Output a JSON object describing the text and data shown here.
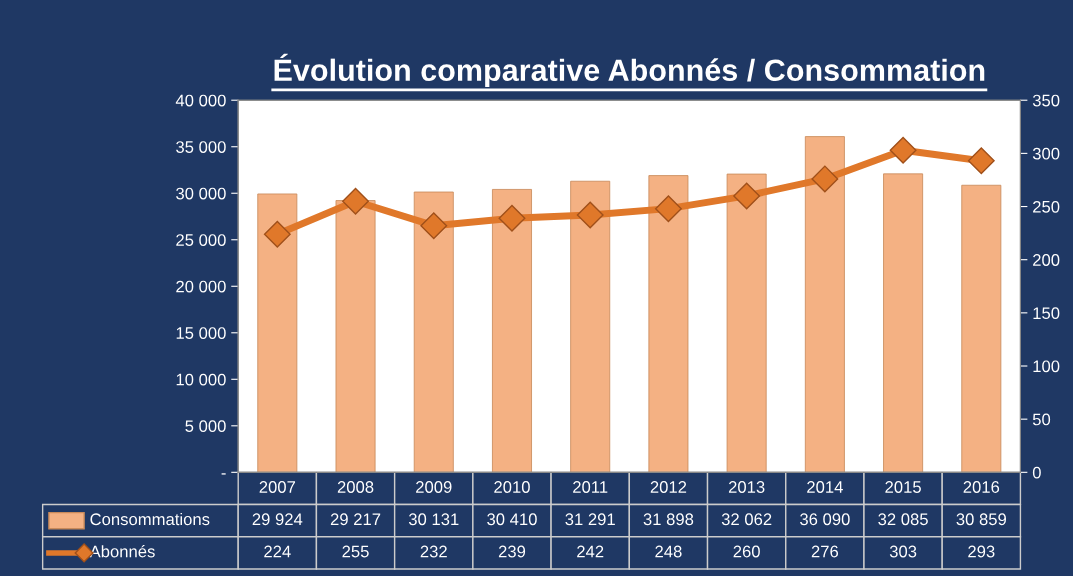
{
  "chart_data": {
    "type": "bar",
    "title": "Évolution comparative Abonnés / Consommation",
    "categories": [
      "2007",
      "2008",
      "2009",
      "2010",
      "2011",
      "2012",
      "2013",
      "2014",
      "2015",
      "2016"
    ],
    "series": [
      {
        "name": "Consommations",
        "color": "#f4b183",
        "values": [
          29924,
          29217,
          30131,
          30410,
          31291,
          31898,
          32062,
          36090,
          32085,
          30859
        ]
      },
      {
        "name": "Abonnés",
        "type": "line",
        "axis": "y2",
        "color": "#e0782a",
        "marker": "diamond",
        "values": [
          224,
          255,
          232,
          239,
          242,
          248,
          260,
          276,
          303,
          293
        ]
      }
    ],
    "ylim": [
      0,
      40000
    ],
    "yticks": [
      {
        "value": 0,
        "label": "-"
      },
      {
        "value": 5000,
        "label": "5 000"
      },
      {
        "value": 10000,
        "label": "10 000"
      },
      {
        "value": 15000,
        "label": "15 000"
      },
      {
        "value": 20000,
        "label": "20 000"
      },
      {
        "value": 25000,
        "label": "25 000"
      },
      {
        "value": 30000,
        "label": "30 000"
      },
      {
        "value": 35000,
        "label": "35 000"
      },
      {
        "value": 40000,
        "label": "40 000"
      }
    ],
    "y2lim": [
      0,
      350
    ],
    "y2ticks": [
      0,
      50,
      100,
      150,
      200,
      250,
      300,
      350
    ],
    "data_labels": true,
    "legend": "bottom",
    "grid": false
  }
}
